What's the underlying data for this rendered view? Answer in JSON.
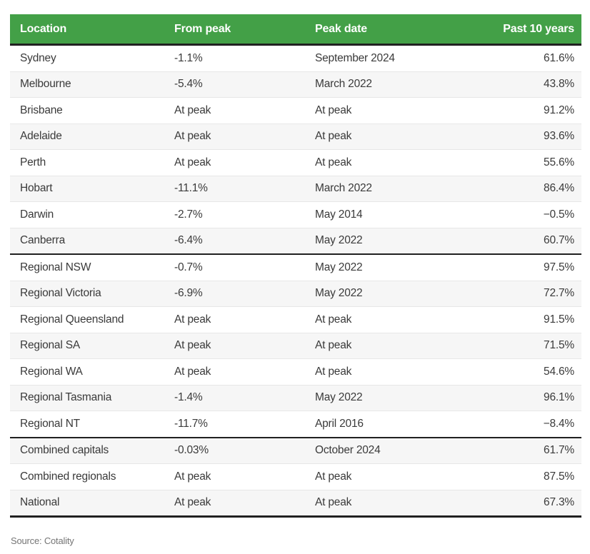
{
  "chart_data": {
    "type": "table",
    "title": "",
    "columns": [
      "Location",
      "From peak",
      "Peak date",
      "Past 10 years"
    ],
    "rows": [
      {
        "location": "Sydney",
        "from_peak": "-1.1%",
        "peak_date": "September 2024",
        "past_10_years": "61.6%"
      },
      {
        "location": "Melbourne",
        "from_peak": "-5.4%",
        "peak_date": "March 2022",
        "past_10_years": "43.8%"
      },
      {
        "location": "Brisbane",
        "from_peak": "At peak",
        "peak_date": "At peak",
        "past_10_years": "91.2%"
      },
      {
        "location": "Adelaide",
        "from_peak": "At peak",
        "peak_date": "At peak",
        "past_10_years": "93.6%"
      },
      {
        "location": "Perth",
        "from_peak": "At peak",
        "peak_date": "At peak",
        "past_10_years": "55.6%"
      },
      {
        "location": "Hobart",
        "from_peak": "-11.1%",
        "peak_date": "March 2022",
        "past_10_years": "86.4%"
      },
      {
        "location": "Darwin",
        "from_peak": "-2.7%",
        "peak_date": "May 2014",
        "past_10_years": "−0.5%"
      },
      {
        "location": "Canberra",
        "from_peak": "-6.4%",
        "peak_date": "May 2022",
        "past_10_years": "60.7%",
        "section_end": true
      },
      {
        "location": "Regional NSW",
        "from_peak": "-0.7%",
        "peak_date": "May 2022",
        "past_10_years": "97.5%"
      },
      {
        "location": "Regional Victoria",
        "from_peak": "-6.9%",
        "peak_date": "May 2022",
        "past_10_years": "72.7%"
      },
      {
        "location": "Regional Queensland",
        "from_peak": "At peak",
        "peak_date": "At peak",
        "past_10_years": "91.5%"
      },
      {
        "location": "Regional SA",
        "from_peak": "At peak",
        "peak_date": "At peak",
        "past_10_years": "71.5%"
      },
      {
        "location": "Regional WA",
        "from_peak": "At peak",
        "peak_date": "At peak",
        "past_10_years": "54.6%"
      },
      {
        "location": "Regional Tasmania",
        "from_peak": "-1.4%",
        "peak_date": "May 2022",
        "past_10_years": "96.1%"
      },
      {
        "location": "Regional NT",
        "from_peak": "-11.7%",
        "peak_date": "April 2016",
        "past_10_years": "−8.4%",
        "section_end": true
      },
      {
        "location": "Combined capitals",
        "from_peak": "-0.03%",
        "peak_date": "October 2024",
        "past_10_years": "61.7%"
      },
      {
        "location": "Combined regionals",
        "from_peak": "At peak",
        "peak_date": "At peak",
        "past_10_years": "87.5%"
      },
      {
        "location": "National",
        "from_peak": "At peak",
        "peak_date": "At peak",
        "past_10_years": "67.3%"
      }
    ],
    "layout": {
      "legend": "none",
      "grid": "horizontal-row-separators",
      "section_breaks_after": [
        "Canberra",
        "Regional NT"
      ],
      "value_alignment": {
        "past_10_years": "right"
      }
    }
  },
  "footer": {
    "source": "Source: Cotality"
  },
  "colors": {
    "header_bg": "#43a047",
    "header_text": "#ffffff",
    "row_alt_bg": "#f6f6f6",
    "row_divider": "#e7e7e7",
    "section_divider": "#212121",
    "body_text": "#3a3a3a",
    "source_text": "#757575"
  }
}
